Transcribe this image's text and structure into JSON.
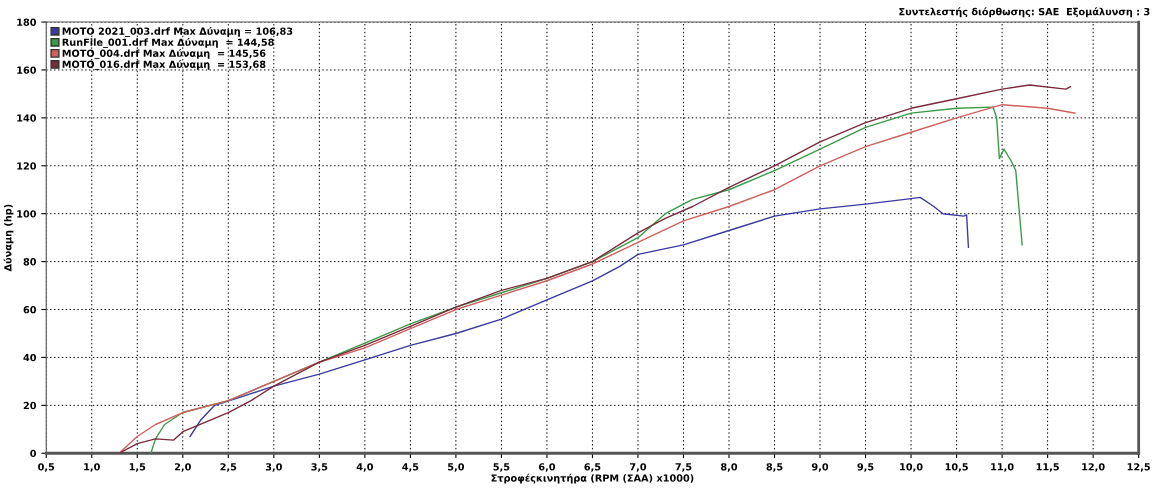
{
  "chart_data": {
    "type": "line",
    "xlabel": "Στροφέςκινητήρα (RPM (ΣΑΑ) x1000)",
    "ylabel": "Δύναμη (hp)",
    "annotations": [
      "Συντελεστής διόρθωσης: SAE  Εξομάλυνση : 3"
    ],
    "series": [
      {
        "name": "MOTO 2021_003.drf Max Δύναμη = 106,83",
        "color": "#3a3aa0",
        "x": [
          2.08,
          2.2,
          2.35,
          2.6,
          3.0,
          3.5,
          4.0,
          4.5,
          5.0,
          5.5,
          6.0,
          6.5,
          6.8,
          7.0,
          7.5,
          8.0,
          8.5,
          9.0,
          9.5,
          10.0,
          10.1,
          10.25,
          10.35,
          10.58,
          10.61,
          10.63
        ],
        "values": [
          7,
          14,
          20,
          23,
          28,
          33,
          39,
          45,
          50,
          56,
          64,
          72,
          78,
          83,
          87,
          93,
          99,
          102,
          104,
          106.3,
          106.8,
          103,
          100,
          99,
          99.5,
          86
        ]
      },
      {
        "name": "RunFile_001.drf Max Δύναμη  = 144,58",
        "color": "#3a9a4a",
        "x": [
          1.65,
          1.7,
          1.8,
          2.0,
          2.5,
          3.0,
          3.5,
          4.0,
          4.5,
          5.0,
          5.5,
          6.0,
          6.5,
          7.0,
          7.3,
          7.6,
          8.0,
          8.5,
          9.0,
          9.5,
          10.0,
          10.5,
          10.9,
          10.94,
          10.97,
          11.02,
          11.1,
          11.15,
          11.22
        ],
        "values": [
          0,
          6,
          12,
          17,
          22,
          30,
          38,
          46,
          54,
          61,
          67,
          73,
          80,
          90,
          100,
          106,
          110,
          118,
          127,
          136,
          142,
          144,
          144.5,
          140,
          123,
          127,
          122,
          118,
          87
        ]
      },
      {
        "name": "MOTO_004.drf Max Δύναμη  = 145,56",
        "color": "#d06060",
        "x": [
          1.3,
          1.5,
          1.7,
          2.0,
          2.5,
          3.0,
          3.5,
          4.0,
          4.5,
          5.0,
          5.5,
          6.0,
          6.5,
          7.0,
          7.5,
          8.0,
          8.5,
          9.0,
          9.5,
          10.0,
          10.5,
          11.0,
          11.5,
          11.8
        ],
        "values": [
          0,
          7,
          12,
          17,
          22,
          30,
          38,
          44,
          52,
          60,
          66,
          72,
          79,
          88,
          97,
          103,
          110,
          120,
          128,
          134,
          140,
          145.5,
          144,
          142
        ]
      },
      {
        "name": "MOTO_016.drf Max Δύναμη  = 153,68",
        "color": "#7a2a3a",
        "x": [
          1.3,
          1.5,
          1.7,
          1.9,
          2.0,
          2.5,
          2.75,
          3.0,
          3.5,
          4.0,
          4.5,
          5.0,
          5.5,
          6.0,
          6.5,
          7.0,
          7.3,
          7.6,
          8.0,
          8.5,
          9.0,
          9.5,
          10.0,
          10.5,
          11.0,
          11.3,
          11.7,
          11.75
        ],
        "values": [
          0,
          4,
          6,
          5.5,
          9,
          17,
          22,
          28,
          38,
          45,
          53,
          61,
          68,
          73,
          80,
          92,
          98,
          103,
          111,
          120,
          130,
          138,
          144,
          148,
          152,
          153.7,
          152,
          153
        ]
      }
    ],
    "xlim": [
      0.5,
      12.5
    ],
    "xticks": [
      {
        "value": 0.5,
        "label": "0,5"
      },
      {
        "value": 1.0,
        "label": "1,0"
      },
      {
        "value": 1.5,
        "label": "1,5"
      },
      {
        "value": 2.0,
        "label": "2,0"
      },
      {
        "value": 2.5,
        "label": "2,5"
      },
      {
        "value": 3.0,
        "label": "3,0"
      },
      {
        "value": 3.5,
        "label": "3,5"
      },
      {
        "value": 4.0,
        "label": "4,0"
      },
      {
        "value": 4.5,
        "label": "4,5"
      },
      {
        "value": 5.0,
        "label": "5,0"
      },
      {
        "value": 5.5,
        "label": "5,5"
      },
      {
        "value": 6.0,
        "label": "6,0"
      },
      {
        "value": 6.5,
        "label": "6,5"
      },
      {
        "value": 7.0,
        "label": "7,0"
      },
      {
        "value": 7.5,
        "label": "7,5"
      },
      {
        "value": 8.0,
        "label": "8,0"
      },
      {
        "value": 8.5,
        "label": "8,5"
      },
      {
        "value": 9.0,
        "label": "9,0"
      },
      {
        "value": 9.5,
        "label": "9,5"
      },
      {
        "value": 10.0,
        "label": "10,0"
      },
      {
        "value": 10.5,
        "label": "10,5"
      },
      {
        "value": 11.0,
        "label": "11,0"
      },
      {
        "value": 11.5,
        "label": "11,5"
      },
      {
        "value": 12.0,
        "label": "12,0"
      },
      {
        "value": 12.5,
        "label": "12,5"
      }
    ],
    "ylim": [
      0,
      180
    ],
    "yticks": [
      0,
      20,
      40,
      60,
      80,
      100,
      120,
      140,
      160,
      180
    ],
    "grid": true,
    "legend": "top left",
    "marker": "none",
    "line_style": "solid"
  }
}
